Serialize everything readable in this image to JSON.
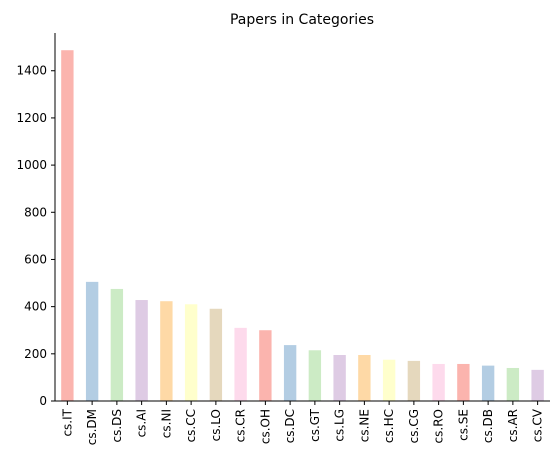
{
  "chart_data": {
    "type": "bar",
    "title": "Papers in Categories",
    "xlabel": "",
    "ylabel": "",
    "categories": [
      "cs.IT",
      "cs.DM",
      "cs.DS",
      "cs.AI",
      "cs.NI",
      "cs.CC",
      "cs.LO",
      "cs.CR",
      "cs.OH",
      "cs.DC",
      "cs.GT",
      "cs.LG",
      "cs.NE",
      "cs.HC",
      "cs.CG",
      "cs.RO",
      "cs.SE",
      "cs.DB",
      "cs.AR",
      "cs.CV"
    ],
    "values": [
      1487,
      505,
      475,
      428,
      423,
      410,
      391,
      310,
      300,
      237,
      215,
      195,
      195,
      175,
      170,
      157,
      157,
      150,
      140,
      132
    ],
    "ylim": [
      0,
      1560
    ],
    "yticks": [
      0,
      200,
      400,
      600,
      800,
      1000,
      1200,
      1400
    ],
    "grid": false,
    "legend": "none",
    "colors": [
      "#fbb4ae",
      "#b3cde3",
      "#ccebc5",
      "#decbe4",
      "#fed9a6",
      "#ffffcc",
      "#e5d8bd",
      "#fddaec"
    ]
  }
}
